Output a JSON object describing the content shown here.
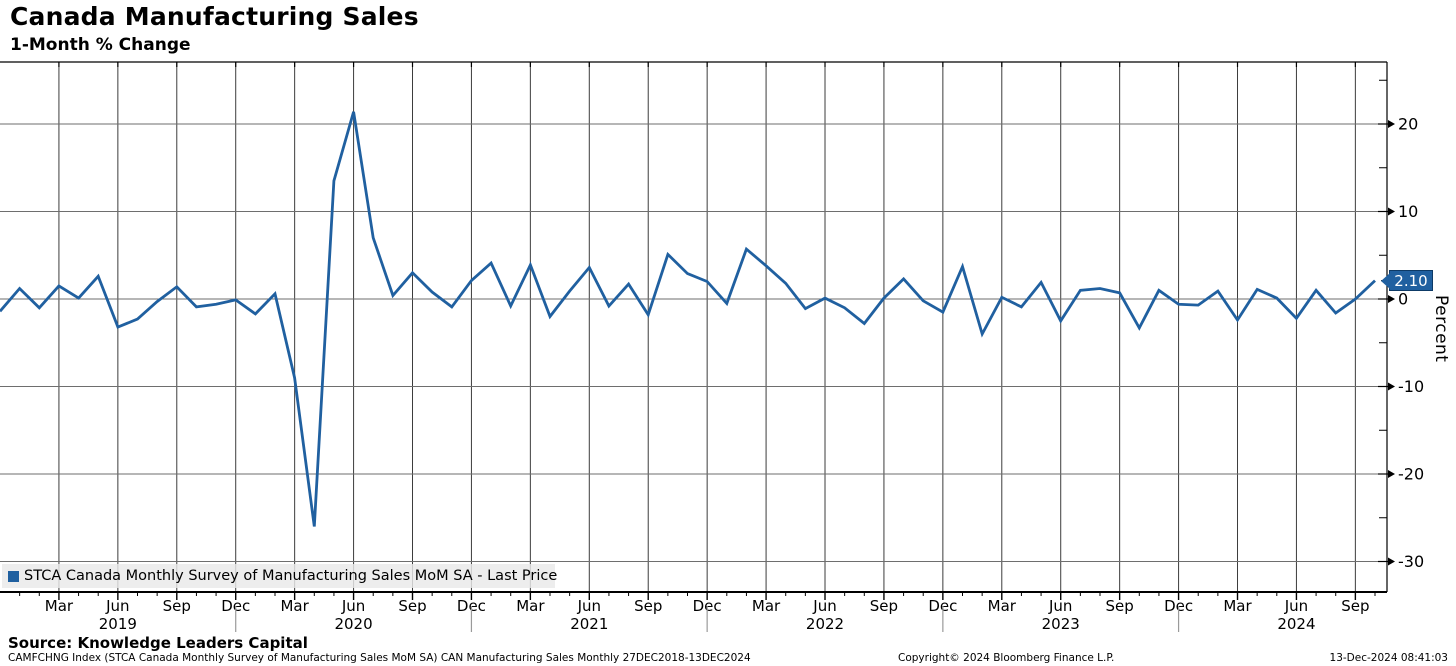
{
  "header": {
    "title": "Canada Manufacturing Sales",
    "subtitle": "1-Month % Change"
  },
  "legend": {
    "items": [
      {
        "label": "STCA Canada Monthly Survey of Manufacturing Sales MoM SA - Last Price",
        "color": "#2060A0"
      }
    ]
  },
  "y_axis": {
    "title": "Percent",
    "last_price": "2.10",
    "major_ticks": [
      20,
      10,
      0,
      -10,
      -20,
      -30
    ],
    "minor_ticks": [
      25,
      15,
      5,
      -5,
      -15,
      -25
    ]
  },
  "x_axis": {
    "tick_labels": [
      "Mar",
      "Jun",
      "Sep",
      "Dec"
    ],
    "years": [
      "2019",
      "2020",
      "2021",
      "2022",
      "2023",
      "2024"
    ]
  },
  "footer": {
    "source": "Source: Knowledge Leaders Capital",
    "description": "CAMFCHNG Index (STCA Canada Monthly Survey of Manufacturing Sales MoM SA) CAN Manufacturing Sales  Monthly 27DEC2018-13DEC2024",
    "copyright": "Copyright© 2024 Bloomberg Finance L.P.",
    "timestamp": "13-Dec-2024 08:41:03"
  },
  "chart_data": {
    "type": "line",
    "title": "Canada Manufacturing Sales",
    "subtitle": "1-Month % Change",
    "ylabel": "Percent",
    "ylim": [
      -32,
      25
    ],
    "y_gridlines": [
      20,
      10,
      0,
      -10,
      -20,
      -30
    ],
    "grid": "on",
    "legend_position": "bottom-left",
    "x_start": "Dec 2018",
    "x_end": "Oct 2024",
    "frequency": "monthly",
    "last_price": 2.1,
    "series": [
      {
        "name": "STCA Canada Monthly Survey of Manufacturing Sales MoM SA - Last Price",
        "color": "#2060A0",
        "values": [
          -1.4,
          1.2,
          -1.0,
          1.5,
          0.1,
          2.6,
          -3.2,
          -2.3,
          -0.3,
          1.4,
          -0.9,
          -0.6,
          -0.1,
          -1.7,
          0.6,
          -9.0,
          -26.0,
          13.5,
          21.4,
          7.0,
          0.4,
          3.0,
          0.8,
          -0.9,
          2.1,
          4.1,
          -0.8,
          3.9,
          -2.0,
          0.9,
          3.6,
          -0.8,
          1.7,
          -1.8,
          5.1,
          2.9,
          2.0,
          -0.5,
          5.7,
          3.8,
          1.8,
          -1.1,
          0.1,
          -1.0,
          -2.8,
          0.1,
          2.3,
          -0.2,
          -1.5,
          3.7,
          -4.0,
          0.2,
          -0.9,
          1.9,
          -2.5,
          1.0,
          1.2,
          0.7,
          -3.3,
          1.0,
          -0.6,
          -0.7,
          0.9,
          -2.4,
          1.1,
          0.1,
          -2.2,
          1.0,
          -1.6,
          0.0,
          2.1
        ]
      }
    ]
  }
}
